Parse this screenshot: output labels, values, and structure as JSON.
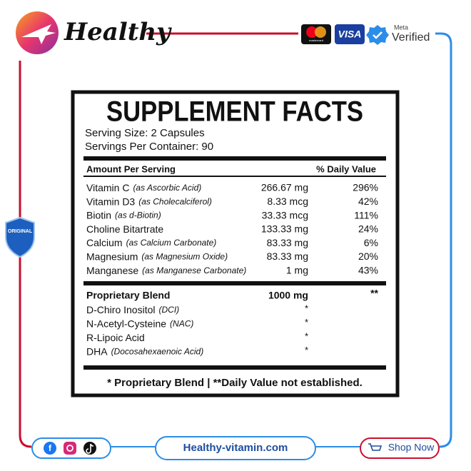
{
  "header": {
    "brand": "Healthy",
    "card1": "mastercard",
    "card2": "VISA",
    "meta": "Meta",
    "verified": "Verified"
  },
  "badge": "ORIGINAL",
  "facts": {
    "title": "SUPPLEMENT FACTS",
    "serving_size": "Serving Size: 2 Capsules",
    "servings_per_container": "Servings Per Container: 90",
    "columns": [
      "Amount Per Serving",
      "% Daily Value"
    ],
    "rows": [
      [
        "Vitamin C",
        "(as Ascorbic Acid)",
        "266.67 mg",
        "296%"
      ],
      [
        "Vitamin D3",
        "(as Cholecalciferol)",
        "8.33 mcg",
        "42%"
      ],
      [
        "Biotin",
        "(as d-Biotin)",
        "33.33 mcg",
        "111%"
      ],
      [
        "Choline Bitartrate",
        null,
        "133.33 mg",
        "24%"
      ],
      [
        "Calcium",
        "(as Calcium Carbonate)",
        "83.33 mg",
        "6%"
      ],
      [
        "Magnesium",
        "(as Magnesium Oxide)",
        "83.33 mg",
        "20%"
      ],
      [
        "Manganese",
        "(as Manganese Carbonate)",
        "1 mg",
        "43%"
      ]
    ],
    "blend": {
      "name": "Proprietary Blend",
      "amount": "1000 mg",
      "dv": "**"
    },
    "blend_rows": [
      [
        "D-Chiro Inositol",
        "(DCI)",
        "*"
      ],
      [
        "N-Acetyl-Cysteine",
        "(NAC)",
        "*"
      ],
      [
        "R-Lipoic Acid",
        null,
        "*"
      ],
      [
        "DHA",
        "(Docosahexaenoic Acid)",
        "*"
      ]
    ],
    "footnote": "* Proprietary Blend | **Daily Value not established."
  },
  "footer": {
    "website": "Healthy-vitamin.com",
    "shop": "Shop Now"
  }
}
